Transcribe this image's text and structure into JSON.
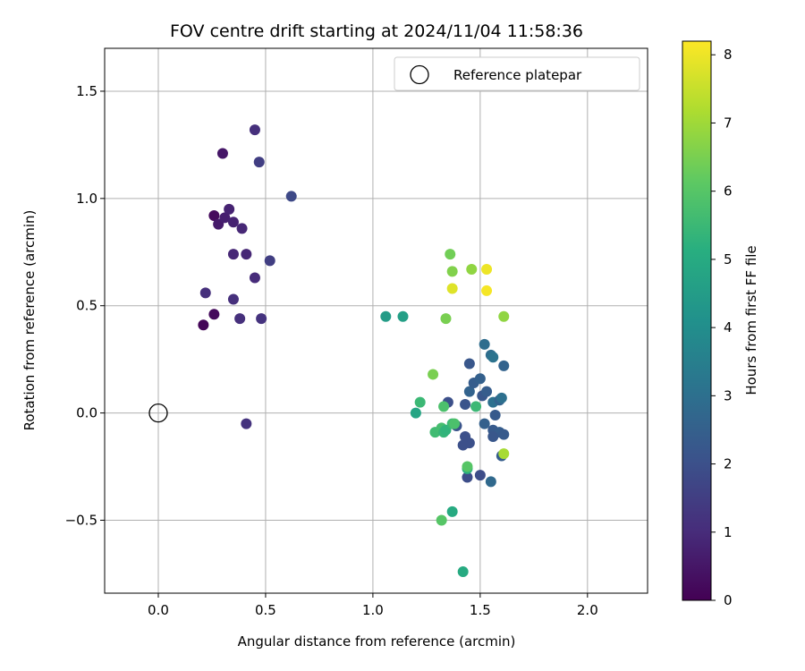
{
  "chart_data": {
    "type": "scatter",
    "title": "FOV centre drift starting at 2024/11/04 11:58:36",
    "xlabel": "Angular distance from reference (arcmin)",
    "ylabel": "Rotation from reference (arcmin)",
    "xlim": [
      -0.25,
      2.28
    ],
    "ylim": [
      -0.84,
      1.7
    ],
    "xticks": [
      0.0,
      0.5,
      1.0,
      1.5,
      2.0
    ],
    "xtick_labels": [
      "0.0",
      "0.5",
      "1.0",
      "1.5",
      "2.0"
    ],
    "yticks": [
      -0.5,
      0.0,
      0.5,
      1.0,
      1.5
    ],
    "ytick_labels": [
      "−0.5",
      "0.0",
      "0.5",
      "1.0",
      "1.5"
    ],
    "grid": true,
    "legend": {
      "placement": "top-right",
      "label": "Reference platepar"
    },
    "reference_point": {
      "x": 0.0,
      "y": 0.0
    },
    "colorbar": {
      "label": "Hours from first FF file",
      "colormap": "viridis",
      "range": [
        0,
        8.2
      ],
      "ticks": [
        0,
        1,
        2,
        3,
        4,
        5,
        6,
        7,
        8
      ],
      "tick_labels": [
        "0",
        "1",
        "2",
        "3",
        "4",
        "5",
        "6",
        "7",
        "8"
      ]
    },
    "points": [
      {
        "x": 0.21,
        "y": 0.41,
        "c": 0.1
      },
      {
        "x": 0.26,
        "y": 0.46,
        "c": 0.2
      },
      {
        "x": 0.26,
        "y": 0.92,
        "c": 0.2
      },
      {
        "x": 0.3,
        "y": 1.21,
        "c": 0.5
      },
      {
        "x": 0.28,
        "y": 0.88,
        "c": 0.6
      },
      {
        "x": 0.31,
        "y": 0.91,
        "c": 0.7
      },
      {
        "x": 0.33,
        "y": 0.95,
        "c": 0.8
      },
      {
        "x": 0.35,
        "y": 0.89,
        "c": 0.8
      },
      {
        "x": 0.39,
        "y": 0.86,
        "c": 0.9
      },
      {
        "x": 0.35,
        "y": 0.74,
        "c": 0.9
      },
      {
        "x": 0.41,
        "y": 0.74,
        "c": 0.9
      },
      {
        "x": 0.45,
        "y": 0.63,
        "c": 1.0
      },
      {
        "x": 0.22,
        "y": 0.56,
        "c": 1.1
      },
      {
        "x": 0.35,
        "y": 0.53,
        "c": 1.1
      },
      {
        "x": 0.38,
        "y": 0.44,
        "c": 1.1
      },
      {
        "x": 0.48,
        "y": 0.44,
        "c": 1.2
      },
      {
        "x": 0.45,
        "y": 1.32,
        "c": 1.1
      },
      {
        "x": 0.47,
        "y": 1.17,
        "c": 1.5
      },
      {
        "x": 0.52,
        "y": 0.71,
        "c": 1.5
      },
      {
        "x": 0.41,
        "y": -0.05,
        "c": 1.2
      },
      {
        "x": 0.62,
        "y": 1.01,
        "c": 1.8
      },
      {
        "x": 1.44,
        "y": -0.3,
        "c": 1.9
      },
      {
        "x": 1.5,
        "y": -0.29,
        "c": 1.9
      },
      {
        "x": 1.55,
        "y": -0.32,
        "c": 2.8
      },
      {
        "x": 1.42,
        "y": -0.15,
        "c": 2.0
      },
      {
        "x": 1.45,
        "y": -0.14,
        "c": 2.0
      },
      {
        "x": 1.43,
        "y": -0.11,
        "c": 2.0
      },
      {
        "x": 1.39,
        "y": -0.06,
        "c": 2.1
      },
      {
        "x": 1.35,
        "y": 0.05,
        "c": 2.0
      },
      {
        "x": 1.43,
        "y": 0.04,
        "c": 2.1
      },
      {
        "x": 1.45,
        "y": 0.1,
        "c": 2.6
      },
      {
        "x": 1.47,
        "y": 0.14,
        "c": 2.4
      },
      {
        "x": 1.45,
        "y": 0.23,
        "c": 2.2
      },
      {
        "x": 1.5,
        "y": 0.16,
        "c": 2.5
      },
      {
        "x": 1.51,
        "y": 0.08,
        "c": 2.2
      },
      {
        "x": 1.53,
        "y": 0.1,
        "c": 2.4
      },
      {
        "x": 1.52,
        "y": 0.32,
        "c": 2.9
      },
      {
        "x": 1.55,
        "y": 0.27,
        "c": 2.9
      },
      {
        "x": 1.56,
        "y": 0.26,
        "c": 3.1
      },
      {
        "x": 1.56,
        "y": 0.05,
        "c": 3.0
      },
      {
        "x": 1.57,
        "y": -0.01,
        "c": 2.3
      },
      {
        "x": 1.59,
        "y": 0.06,
        "c": 2.6
      },
      {
        "x": 1.6,
        "y": 0.07,
        "c": 3.0
      },
      {
        "x": 1.61,
        "y": 0.22,
        "c": 2.6
      },
      {
        "x": 1.56,
        "y": -0.08,
        "c": 2.3
      },
      {
        "x": 1.59,
        "y": -0.09,
        "c": 2.4
      },
      {
        "x": 1.61,
        "y": -0.1,
        "c": 2.3
      },
      {
        "x": 1.56,
        "y": -0.11,
        "c": 2.2
      },
      {
        "x": 1.52,
        "y": -0.05,
        "c": 2.5
      },
      {
        "x": 1.6,
        "y": -0.2,
        "c": 2.4
      },
      {
        "x": 1.06,
        "y": 0.45,
        "c": 4.5
      },
      {
        "x": 1.14,
        "y": 0.45,
        "c": 4.6
      },
      {
        "x": 1.2,
        "y": 0.0,
        "c": 4.8
      },
      {
        "x": 1.22,
        "y": 0.05,
        "c": 5.5
      },
      {
        "x": 1.28,
        "y": 0.18,
        "c": 6.5
      },
      {
        "x": 1.29,
        "y": -0.09,
        "c": 5.6
      },
      {
        "x": 1.32,
        "y": -0.07,
        "c": 5.7
      },
      {
        "x": 1.33,
        "y": -0.09,
        "c": 5.4
      },
      {
        "x": 1.34,
        "y": -0.08,
        "c": 5.3
      },
      {
        "x": 1.33,
        "y": 0.03,
        "c": 5.8
      },
      {
        "x": 1.37,
        "y": -0.05,
        "c": 5.5
      },
      {
        "x": 1.38,
        "y": -0.05,
        "c": 5.8
      },
      {
        "x": 1.44,
        "y": -0.26,
        "c": 5.2
      },
      {
        "x": 1.44,
        "y": -0.25,
        "c": 6.0
      },
      {
        "x": 1.48,
        "y": 0.03,
        "c": 5.5
      },
      {
        "x": 1.32,
        "y": -0.5,
        "c": 6.0
      },
      {
        "x": 1.37,
        "y": -0.46,
        "c": 5.0
      },
      {
        "x": 1.42,
        "y": -0.74,
        "c": 5.0
      },
      {
        "x": 1.34,
        "y": 0.44,
        "c": 6.5
      },
      {
        "x": 1.36,
        "y": 0.74,
        "c": 6.4
      },
      {
        "x": 1.37,
        "y": 0.66,
        "c": 6.6
      },
      {
        "x": 1.46,
        "y": 0.67,
        "c": 6.8
      },
      {
        "x": 1.61,
        "y": 0.45,
        "c": 6.8
      },
      {
        "x": 1.61,
        "y": -0.19,
        "c": 7.1
      },
      {
        "x": 1.37,
        "y": 0.58,
        "c": 7.8
      },
      {
        "x": 1.53,
        "y": 0.67,
        "c": 8.0
      },
      {
        "x": 1.53,
        "y": 0.57,
        "c": 8.1
      }
    ]
  }
}
